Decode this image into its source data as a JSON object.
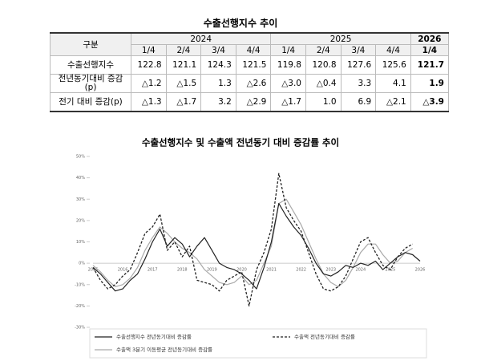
{
  "table": {
    "title": "수출선행지수 추이",
    "corner": "구분",
    "years": [
      "2024",
      "2025",
      "2026"
    ],
    "quarters": [
      "1/4",
      "2/4",
      "3/4",
      "4/4",
      "1/4",
      "2/4",
      "3/4",
      "4/4",
      "1/4"
    ],
    "rows": [
      [
        "수출선행지수",
        "122.8",
        "121.1",
        "124.3",
        "121.5",
        "119.8",
        "120.8",
        "127.6",
        "125.6",
        "121.7"
      ],
      [
        "전년동기대비 증감(p)",
        "△1.2",
        "△1.5",
        "1.3",
        "△2.6",
        "△3.0",
        "△0.4",
        "3.3",
        "4.1",
        "1.9"
      ],
      [
        "전기 대비 증감(p)",
        "△1.3",
        "△1.7",
        "3.2",
        "△2.9",
        "△1.7",
        "1.0",
        "6.9",
        "△2.1",
        "△3.9"
      ]
    ]
  },
  "chart_data": {
    "type": "line",
    "title": "수출선행지수 및 수출액 전년동기 대비 증감률 추이",
    "categories": [
      "2015",
      null,
      null,
      null,
      "2016",
      null,
      null,
      null,
      "2017",
      null,
      null,
      null,
      "2018",
      null,
      null,
      null,
      "2019",
      null,
      null,
      null,
      "2020",
      null,
      null,
      null,
      "2021",
      null,
      null,
      null,
      "2022",
      null,
      null,
      null,
      "2023",
      null,
      null,
      null,
      "2024",
      null,
      null,
      null,
      "2025",
      null,
      null,
      null,
      "2026"
    ],
    "ylim": [
      -30,
      50
    ],
    "yticks": [
      {
        "value": -30,
        "label": "-30%"
      },
      {
        "value": -20,
        "label": "-20%"
      },
      {
        "value": -10,
        "label": "-10%"
      },
      {
        "value": 0,
        "label": "0%"
      },
      {
        "value": 10,
        "label": "10%"
      },
      {
        "value": 20,
        "label": "20%"
      },
      {
        "value": 30,
        "label": "30%"
      },
      {
        "value": 40,
        "label": "40%"
      },
      {
        "value": 50,
        "label": "50%"
      }
    ],
    "series": [
      {
        "name": "수출선행지수 전년동기대비 증감률",
        "color": "#222222",
        "dash": "solid",
        "values": [
          -2,
          -5,
          -9,
          -13,
          -12,
          -8,
          -5,
          2,
          10,
          16,
          8,
          12,
          9,
          3,
          8,
          12,
          6,
          0,
          -2,
          -3,
          -5,
          -8,
          -12,
          -2,
          10,
          28,
          22,
          17,
          13,
          7,
          0,
          -5,
          -6,
          -4,
          -1,
          -2,
          0,
          -1,
          1,
          -3,
          0,
          3,
          5,
          4,
          1
        ]
      },
      {
        "name": "수출액 전년동기대비 증감률",
        "color": "#222222",
        "dash": "dashed",
        "values": [
          -2,
          -8,
          -12,
          -10,
          -6,
          -3,
          5,
          14,
          17,
          23,
          6,
          10,
          3,
          8,
          -8,
          -9,
          -10,
          -13,
          -8,
          -6,
          -4,
          -20,
          -3,
          5,
          16,
          42,
          26,
          20,
          15,
          5,
          -5,
          -12,
          -13,
          -11,
          -6,
          2,
          10,
          12,
          5,
          -1,
          -3,
          3,
          7,
          9,
          null
        ]
      },
      {
        "name": "수출액 3분기 이동평균 전년동기대비 증감률",
        "color": "#aaaaaa",
        "dash": "solid",
        "values": [
          -1,
          -4,
          -8,
          -11,
          -10,
          -7,
          -2,
          6,
          12,
          17,
          14,
          10,
          7,
          5,
          2,
          -3,
          -6,
          -9,
          -10,
          -9,
          -6,
          -10,
          -8,
          0,
          8,
          28,
          30,
          24,
          18,
          10,
          2,
          -5,
          -9,
          -11,
          -8,
          -2,
          5,
          9,
          9,
          4,
          0,
          1,
          5,
          7,
          null
        ]
      }
    ]
  }
}
